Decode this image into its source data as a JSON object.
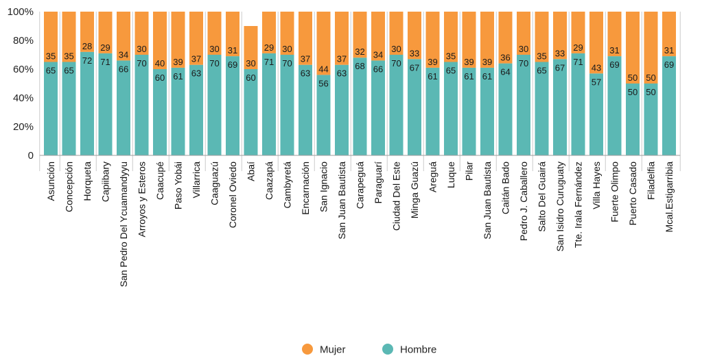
{
  "chart_data": {
    "type": "bar",
    "stacked": true,
    "categories": [
      "Asunción",
      "Concepción",
      "Horqueta",
      "Capiibary",
      "San Pedro Del Ycuamandyyu",
      "Arroyos y Esteros",
      "Caacupé",
      "Paso Yobái",
      "Villarrica",
      "Caaguazú",
      "Coronel Oviedo",
      "Abaí",
      "Caazapá",
      "Cambyretá",
      "Encarnación",
      "San Ignacio",
      "San Juan Bautista",
      "Carapeguá",
      "Paraguarí",
      "Ciudad Del Este",
      "Minga Guazú",
      "Areguá",
      "Luque",
      "Pilar",
      "San Juan Bautista",
      "Caitán Bado",
      "Pedro J. Caballero",
      "Salto Del Guairá",
      "San Isidro Curuguaty",
      "Tte. Irala Fernández",
      "Villa Hayes",
      "Fuerte Olimpo",
      "Puerto Casado",
      "Filadelfia",
      "Mcal.Estigarribia"
    ],
    "groups": [
      [
        0
      ],
      [
        1,
        2
      ],
      [
        3,
        4
      ],
      [
        5,
        6
      ],
      [
        7,
        8
      ],
      [
        9,
        10
      ],
      [
        11,
        12
      ],
      [
        13,
        14
      ],
      [
        15,
        16
      ],
      [
        17,
        18
      ],
      [
        19,
        20
      ],
      [
        21,
        22
      ],
      [
        23,
        24
      ],
      [
        25,
        26
      ],
      [
        27,
        28
      ],
      [
        29,
        30
      ],
      [
        31,
        32
      ],
      [
        33,
        34
      ]
    ],
    "series": [
      {
        "name": "Hombre",
        "color": "#5bb8b4",
        "values": [
          65,
          65,
          72,
          71,
          66,
          70,
          60,
          61,
          63,
          70,
          69,
          60,
          71,
          70,
          63,
          56,
          63,
          68,
          66,
          70,
          67,
          61,
          65,
          61,
          61,
          64,
          70,
          65,
          67,
          71,
          57,
          69,
          50,
          50,
          69
        ]
      },
      {
        "name": "Mujer",
        "color": "#f7993d",
        "values": [
          35,
          35,
          28,
          29,
          34,
          30,
          40,
          39,
          37,
          30,
          31,
          30,
          29,
          30,
          37,
          44,
          37,
          32,
          34,
          30,
          33,
          39,
          35,
          39,
          39,
          36,
          30,
          35,
          33,
          29,
          43,
          31,
          50,
          50,
          31
        ]
      }
    ],
    "yticks": [
      "0",
      "20%",
      "40%",
      "60%",
      "80%",
      "100%"
    ],
    "ylim": [
      0,
      100
    ],
    "legend": {
      "position": "bottom",
      "entries": [
        "Mujer",
        "Hombre"
      ]
    },
    "colors": {
      "mujer": "#f7993d",
      "hombre": "#5bb8b4",
      "separator": "#cccccc",
      "axis": "#9e9e9e"
    }
  }
}
